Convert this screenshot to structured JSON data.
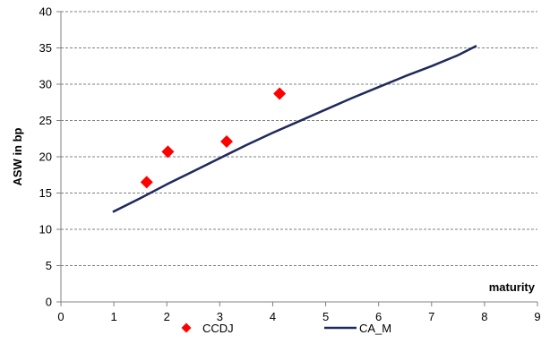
{
  "chart_data": {
    "type": "scatter",
    "xlabel": "maturity",
    "ylabel": "ASW in bp",
    "xlim": [
      0,
      9
    ],
    "ylim": [
      0,
      40
    ],
    "xticks": [
      "0",
      "1",
      "2",
      "3",
      "4",
      "5",
      "6",
      "7",
      "8",
      "9"
    ],
    "yticks": [
      "0",
      "5",
      "10",
      "15",
      "20",
      "25",
      "30",
      "35",
      "40"
    ],
    "grid": "horizontal dashed",
    "legend_position": "bottom",
    "series": [
      {
        "name": "CCDJ",
        "kind": "scatter",
        "marker": "diamond",
        "color": "#ff0000",
        "x": [
          1.62,
          2.02,
          3.13,
          4.13
        ],
        "y": [
          16.5,
          20.7,
          22.1,
          28.7
        ]
      },
      {
        "name": "CA_M",
        "kind": "line",
        "color": "#1f2a5c",
        "x": [
          0.98,
          1.5,
          2.0,
          2.5,
          3.0,
          3.5,
          4.0,
          4.5,
          5.0,
          5.5,
          6.0,
          6.5,
          7.0,
          7.5,
          7.85
        ],
        "y": [
          12.4,
          14.3,
          16.2,
          18.0,
          19.8,
          21.6,
          23.3,
          24.9,
          26.5,
          28.1,
          29.6,
          31.1,
          32.5,
          34.0,
          35.3
        ]
      }
    ]
  }
}
